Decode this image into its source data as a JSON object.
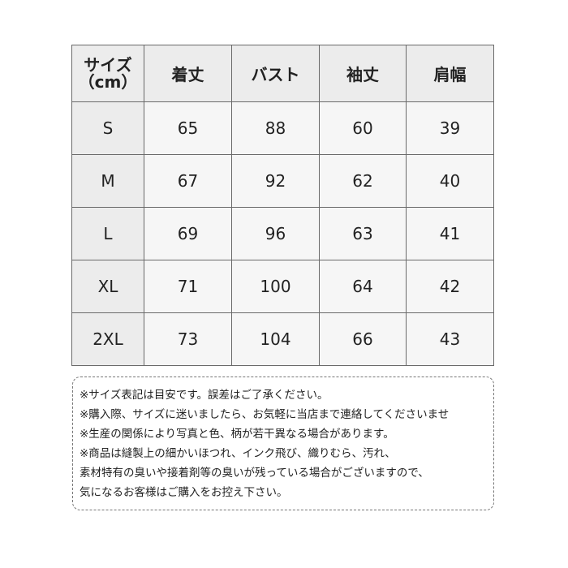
{
  "table": {
    "corner": [
      "サイズ",
      "（cm）"
    ],
    "headers": [
      "着丈",
      "バスト",
      "袖丈",
      "肩幅"
    ],
    "rows": [
      {
        "size": "S",
        "values": [
          "65",
          "88",
          "60",
          "39"
        ]
      },
      {
        "size": "M",
        "values": [
          "67",
          "92",
          "62",
          "40"
        ]
      },
      {
        "size": "L",
        "values": [
          "69",
          "96",
          "63",
          "41"
        ]
      },
      {
        "size": "XL",
        "values": [
          "71",
          "100",
          "64",
          "42"
        ]
      },
      {
        "size": "2XL",
        "values": [
          "73",
          "104",
          "66",
          "43"
        ]
      }
    ]
  },
  "notes": [
    "※サイズ表記は目安です。誤差はご了承ください。",
    "※購入際、サイズに迷いましたら、お気軽に当店まで連絡してくださいませ",
    "※生産の関係により写真と色、柄が若干異なる場合があります。",
    "※商品は縫製上の細かいほつれ、インク飛び、織りむら、汚れ、",
    "素材特有の臭いや接着剤等の臭いが残っている場合がございますので、",
    "気になるお客様はご購入をお控え下さい。"
  ]
}
